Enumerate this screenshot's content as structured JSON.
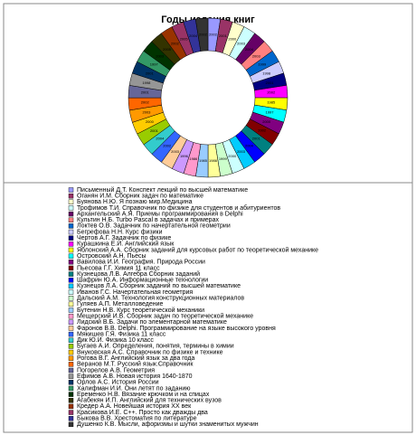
{
  "chart_data": {
    "type": "pie",
    "title": "Годы издания книг",
    "categories": [
      "Письменный Д.Т. Конспект лекций по высшей математике",
      "Оганян И.М. Сборник задач по математике",
      "Буянова Н.Ю. Я познаю мир.Медицина",
      "Трофимов Т.И. Справочник по физике для студентов и абитуриентов",
      "Архангельский А.Я. Приемы программирования в Delphi",
      "Культин Н.Б. Turbo Pascal в задачах и примерах",
      "Локтев О.В. Задачник по начертательной геометрии",
      "Бегрефова Н.Н. Курс физики",
      "Чертов А.Г. Задачник по физике",
      "Курашкина Е.И. Английский язык",
      "Яблонский А.А. Сборник заданий для курсовых работ по теоретической механике",
      "Островский А.Н. Пьесы",
      "Вавилова И.И. География. Природа России",
      "Пьесова Г.Г. Химия 11 класс",
      "Кузнецова Л.В. Алгебра Сборник заданий",
      "Шафрин Ю.А. Информационные технологии",
      "Кузнецов Л.А. Сборник заданий по высшей математике",
      "Иванов Г.С. Начертательная геометрия",
      "Дальский А.М. Технология конструкционных материалов",
      "Гуляев А.П. Металловедение",
      "Бутенин Н.В. Курс теоретической механики",
      "Мещерский И.В. Сборник задач по теоретической механике",
      "Лидский В.Б. Задачи по элементарной математике",
      "Фаронов В.В. Delphi. Программирование на языке высокого уровня",
      "Мякишев Г.Я. Физика 11 класс",
      "Дик Ю.И. Физика 10 класс",
      "Бугаев А.И. Определения, понятия, термины в химии",
      "Внуковская А.С. Справочник по физике и технике",
      "Рогова В.Г. Английский язык за два года",
      "Веранов М.Т. Русский язык.Справочник",
      "Погорелов А.В. Геометрия",
      "Ефимов А.В. Новая история 1640-1870",
      "Орлов А.С. История России",
      "Халифман И.И. Они летят по заданию",
      "Еременко Н.В. Вязание крючком и на спицах",
      "Агабекян И.П. Английский для технических вузов",
      "Кредер А.А. Новейшая история XX век",
      "Красикова И.Е. C++. Просто как дважды два",
      "Быкова В.В. Хрестоматия по литературе",
      "Душенко К.В. Мысли, афоризмы и шутки знаменитых мужчин"
    ],
    "values": [
      2002,
      2001,
      2000,
      2003,
      2004,
      2003,
      1999,
      1998,
      2001,
      2002,
      1985,
      1997,
      2000,
      2002,
      2001,
      2004,
      2003,
      2000,
      1999,
      1986,
      1985,
      1986,
      1996,
      2003,
      2002,
      2004,
      2001,
      2000,
      2003,
      2002,
      2001,
      1998,
      2001,
      1997,
      2003,
      2005,
      2002,
      2005,
      2004,
      2002
    ],
    "colors": [
      "#9999ff",
      "#993366",
      "#ffffcc",
      "#ccffff",
      "#660066",
      "#ff8080",
      "#0066cc",
      "#ccccff",
      "#000080",
      "#ff00ff",
      "#ffff00",
      "#00ffff",
      "#800080",
      "#800000",
      "#008080",
      "#0000ff",
      "#00ccff",
      "#ccffff",
      "#ccffcc",
      "#ffff99",
      "#99ccff",
      "#ff99cc",
      "#cc99ff",
      "#ffcc99",
      "#3366ff",
      "#33cccc",
      "#99cc00",
      "#ffcc00",
      "#ff9900",
      "#ff6600",
      "#666699",
      "#969696",
      "#003366",
      "#339966",
      "#003300",
      "#333300",
      "#993300",
      "#993366",
      "#333399",
      "#333333"
    ]
  }
}
